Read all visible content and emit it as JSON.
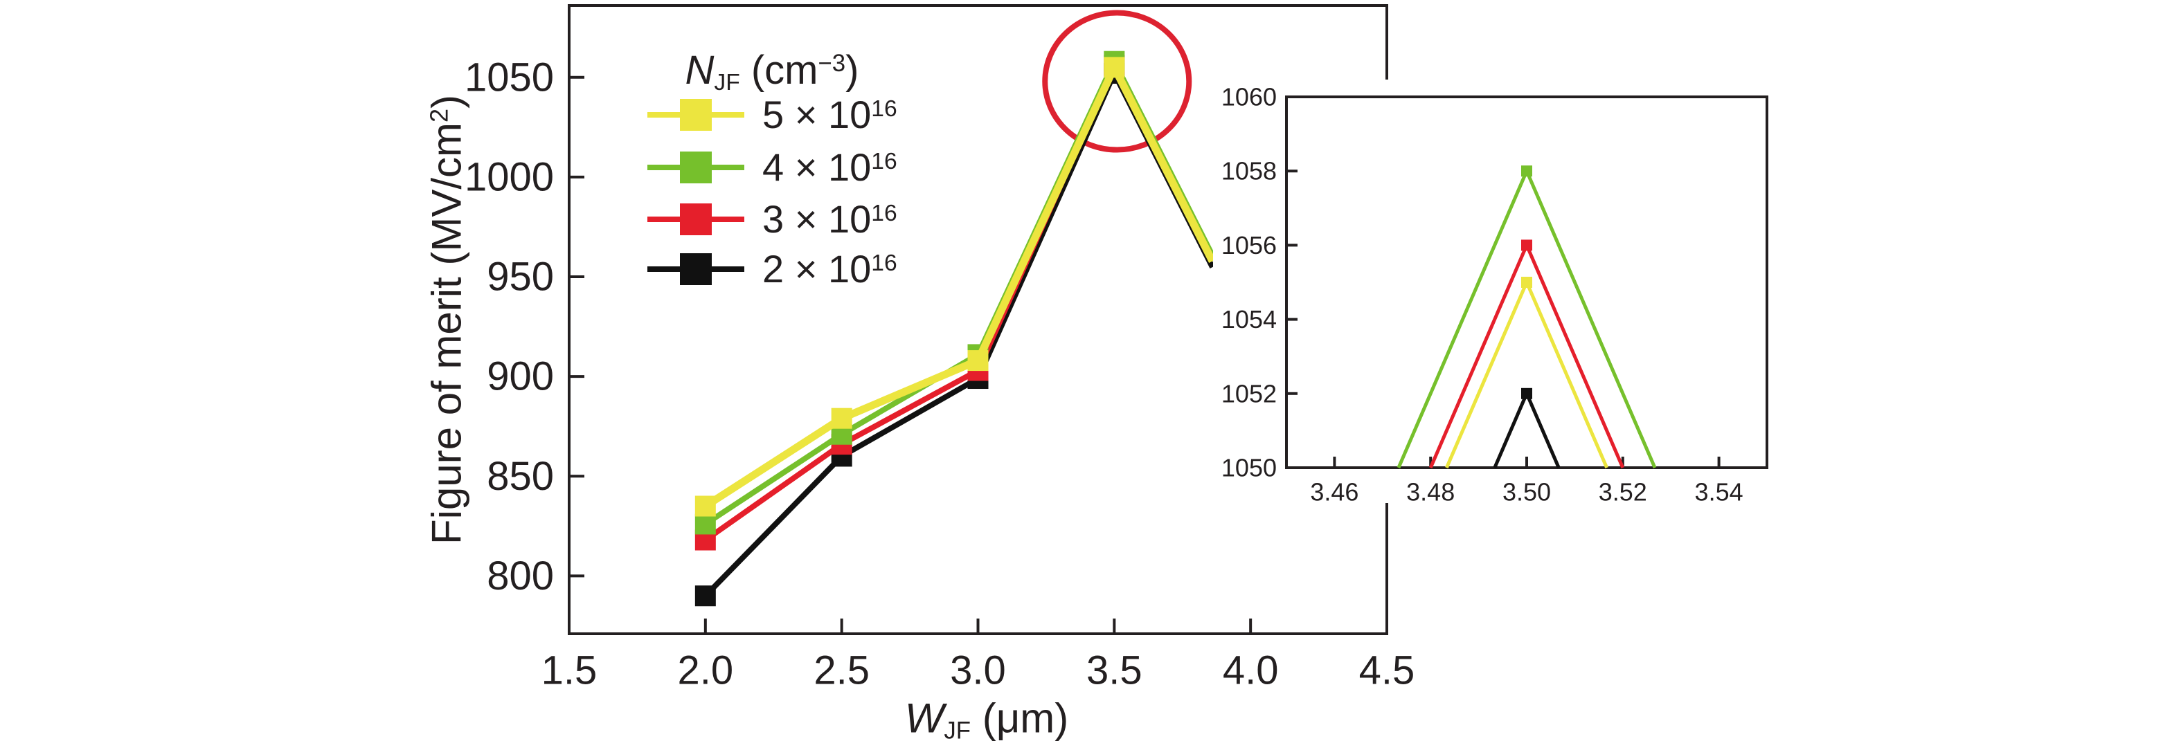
{
  "colors": {
    "text": "#231f20",
    "frame": "#231f20",
    "background": "#ffffff",
    "yellow": "#ece53f",
    "green": "#76c02c",
    "red": "#e51f2b",
    "black": "#111111",
    "highlight_circle": "#dd2230"
  },
  "axis_titles": {
    "y_parts": {
      "prefix": "Figure of merit (MV/cm",
      "sup": "2",
      "suffix": ")"
    },
    "x_parts": {
      "var": "W",
      "sub": "JF",
      "suffix": " (μm)"
    }
  },
  "legend": {
    "title_parts": {
      "var": "N",
      "sub": "JF",
      "mid": " (cm",
      "sup": "−3",
      "end": ")"
    },
    "entries": [
      {
        "base": "5 × 10",
        "exp": "16",
        "key": "yellow",
        "color": "#ece53f"
      },
      {
        "base": "4 × 10",
        "exp": "16",
        "key": "green",
        "color": "#76c02c"
      },
      {
        "base": "3 × 10",
        "exp": "16",
        "key": "red",
        "color": "#e51f2b"
      },
      {
        "base": "2 × 10",
        "exp": "16",
        "key": "black",
        "color": "#111111"
      }
    ]
  },
  "chart_data": {
    "type": "line",
    "title": "",
    "xlabel": "W_JF (μm)",
    "ylabel": "Figure of merit (MV/cm^2)",
    "xlim": [
      1.5,
      4.5
    ],
    "ylim": [
      771,
      1086
    ],
    "grid": false,
    "legend_position": "top-left-inside",
    "x_ticks": [
      "1.5",
      "2.0",
      "2.5",
      "3.0",
      "3.5",
      "4.0",
      "4.5"
    ],
    "y_ticks": [
      "800",
      "850",
      "900",
      "950",
      "1000",
      "1050"
    ],
    "x": [
      2.0,
      2.5,
      3.0,
      3.5
    ],
    "series": [
      {
        "name": "5 × 10^16",
        "key": "yellow",
        "color": "#ece53f",
        "values": [
          835,
          879,
          908,
          1055
        ]
      },
      {
        "name": "4 × 10^16",
        "key": "green",
        "color": "#76c02c",
        "values": [
          826,
          871,
          911,
          1058
        ]
      },
      {
        "name": "3 × 10^16",
        "key": "red",
        "color": "#e51f2b",
        "values": [
          818,
          866,
          903,
          1056
        ]
      },
      {
        "name": "2 × 10^16",
        "key": "black",
        "color": "#111111",
        "values": [
          790,
          860,
          899,
          1052
        ]
      }
    ],
    "clipped_tail": {
      "from_x": 3.5,
      "to_x": 3.86,
      "slope_per_unit": -270,
      "note": "curves continue past the 3.5 peak and are hidden behind the inset panel"
    },
    "annotation": {
      "type": "circle-highlight",
      "x": 3.51,
      "y": 1048,
      "note": "red circle highlighting the peak at W_JF = 3.5"
    },
    "inset": {
      "type": "line",
      "xlim": [
        3.45,
        3.55
      ],
      "ylim": [
        1050,
        1060
      ],
      "x_ticks": [
        "3.46",
        "3.48",
        "3.50",
        "3.52",
        "3.54"
      ],
      "y_ticks": [
        "1050",
        "1052",
        "1054",
        "1056",
        "1058",
        "1060"
      ],
      "peak_x": 3.5,
      "slope_per_unit": 300,
      "series": [
        {
          "key": "green",
          "color": "#76c02c",
          "peak": 1058
        },
        {
          "key": "red",
          "color": "#e51f2b",
          "peak": 1056
        },
        {
          "key": "yellow",
          "color": "#ece53f",
          "peak": 1055
        },
        {
          "key": "black",
          "color": "#111111",
          "peak": 1052
        }
      ]
    }
  }
}
